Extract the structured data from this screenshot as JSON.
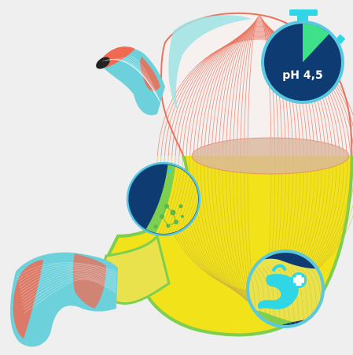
{
  "illustration": {
    "stopwatch": {
      "label": "pH 4,5",
      "progress_fraction": 0.12
    },
    "colors": {
      "background": "#efefef",
      "stomach_outline": "#e8735e",
      "stomach_fill_light": "#f6f0ee",
      "stomach_highlight": "#9fe3e4",
      "acid_yellow": "#f2e21a",
      "acid_green": "#7ccf4f",
      "liquid_surface": "#d9b89f",
      "esophagus_red": "#f06a52",
      "esophagus_teal": "#6dd1db",
      "badge_navy": "#0f3b73",
      "badge_ring": "#58c9e0",
      "badge_green": "#3ee08a",
      "badge_cyan": "#2fd6e6",
      "badge_white": "#ffffff"
    },
    "icons": {
      "stopwatch": "stopwatch-icon",
      "plus": "plus-icon",
      "stomach_mini": "stomach-mini-icon",
      "cells": "cells-icon"
    }
  }
}
